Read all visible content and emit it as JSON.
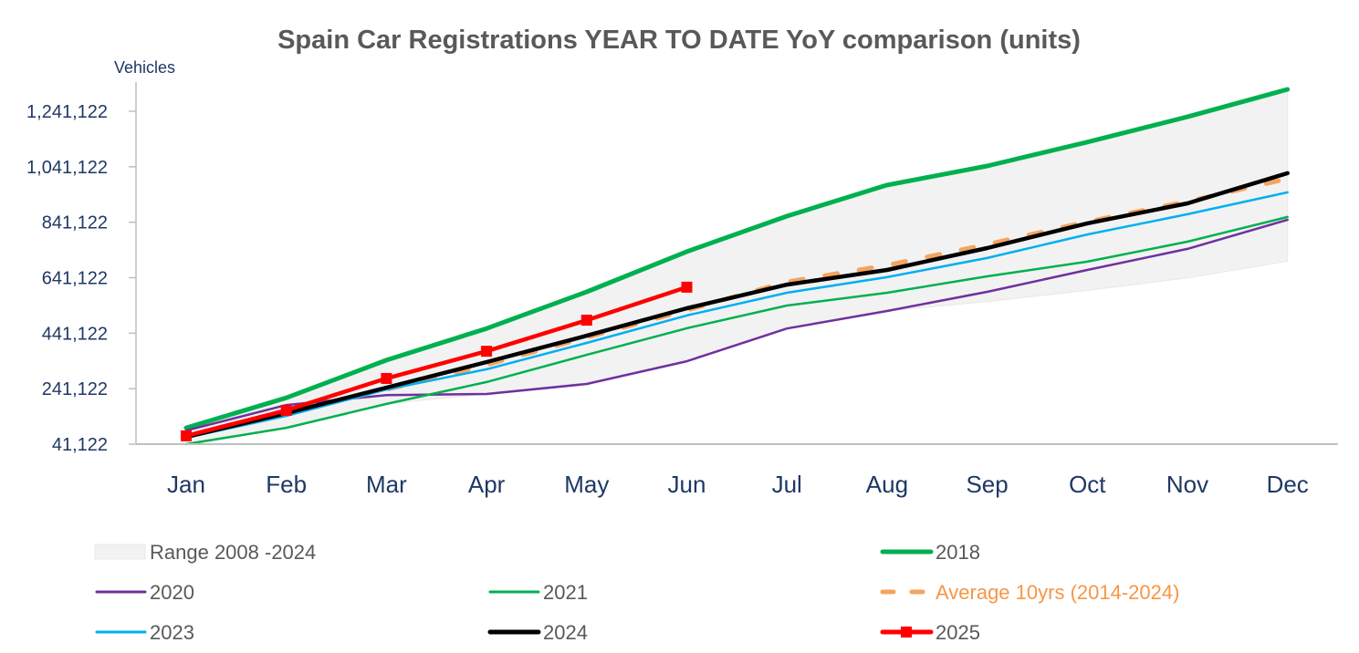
{
  "chart_data": {
    "type": "line",
    "title": "Spain Car Registrations YEAR TO DATE YoY comparison (units)",
    "xlabel": "",
    "ylabel": "Vehicles",
    "ylim": [
      41122,
      1341122
    ],
    "yticks": [
      41122,
      241122,
      441122,
      641122,
      841122,
      1041122,
      1241122
    ],
    "ytick_labels": [
      "41,122",
      "241,122",
      "441,122",
      "641,122",
      "841,122",
      "1,041,122",
      "1,241,122"
    ],
    "categories": [
      "Jan",
      "Feb",
      "Mar",
      "Apr",
      "May",
      "Jun",
      "Jul",
      "Aug",
      "Sep",
      "Oct",
      "Nov",
      "Dec"
    ],
    "grid": false,
    "legend_position": "bottom",
    "range": {
      "name": "Range 2008 -2024",
      "color": "#f2f2f2",
      "border": "#ece9e0",
      "low": [
        41000,
        100000,
        186000,
        222000,
        258000,
        340000,
        458000,
        521000,
        555000,
        595000,
        640000,
        701000
      ],
      "high": [
        100000,
        208000,
        344000,
        458000,
        590000,
        735000,
        863000,
        975000,
        1044000,
        1130000,
        1221000,
        1320000
      ]
    },
    "series": [
      {
        "name": "2018",
        "color": "#00b050",
        "width": 5,
        "dash": "",
        "marker": false,
        "values": [
          100000,
          208000,
          344000,
          458000,
          590000,
          735000,
          863000,
          975000,
          1044000,
          1130000,
          1221000,
          1320000
        ]
      },
      {
        "name": "2020",
        "color": "#7030a0",
        "width": 2.5,
        "dash": "",
        "marker": false,
        "values": [
          90000,
          182000,
          218000,
          222000,
          258000,
          340000,
          458000,
          521000,
          590000,
          669000,
          745000,
          850000
        ]
      },
      {
        "name": "2021",
        "color": "#00b050",
        "width": 2.5,
        "dash": "",
        "marker": false,
        "values": [
          41000,
          100000,
          186000,
          265000,
          363000,
          459000,
          541000,
          587000,
          646000,
          699000,
          771000,
          860000
        ]
      },
      {
        "name": "Average 10yrs (2014-2024)",
        "color": "#f4a460",
        "width": 5,
        "dash": "14 24",
        "marker": false,
        "label_color": "#f79646",
        "values": [
          67000,
          156000,
          238000,
          327000,
          426000,
          524000,
          626000,
          686000,
          761000,
          843000,
          916000,
          998000
        ]
      },
      {
        "name": "2023",
        "color": "#00b0f0",
        "width": 2.5,
        "dash": "",
        "marker": false,
        "values": [
          64000,
          143000,
          238000,
          311000,
          406000,
          505000,
          587000,
          643000,
          712000,
          797000,
          870000,
          949000
        ]
      },
      {
        "name": "2024",
        "color": "#000000",
        "width": 4.5,
        "dash": "",
        "marker": false,
        "values": [
          67000,
          153000,
          245000,
          337000,
          432000,
          531000,
          616000,
          669000,
          748000,
          837000,
          909000,
          1018000
        ]
      },
      {
        "name": "2025",
        "color": "#ff0000",
        "width": 4.5,
        "dash": "",
        "marker": true,
        "values": [
          71000,
          163000,
          278000,
          376000,
          488000,
          607000
        ]
      }
    ],
    "legend": [
      {
        "key": "range",
        "label": "Range 2008 -2024",
        "col": 0,
        "row": 0
      },
      {
        "key": "2018",
        "label": "2018",
        "col": 2,
        "row": 0
      },
      {
        "key": "2020",
        "label": "2020",
        "col": 0,
        "row": 1
      },
      {
        "key": "2021",
        "label": "2021",
        "col": 1,
        "row": 1
      },
      {
        "key": "Average 10yrs (2014-2024)",
        "label": "Average 10yrs (2014-2024)",
        "col": 2,
        "row": 1
      },
      {
        "key": "2023",
        "label": "2023",
        "col": 0,
        "row": 2
      },
      {
        "key": "2024",
        "label": "2024",
        "col": 1,
        "row": 2
      },
      {
        "key": "2025",
        "label": "2025",
        "col": 2,
        "row": 2
      }
    ]
  }
}
